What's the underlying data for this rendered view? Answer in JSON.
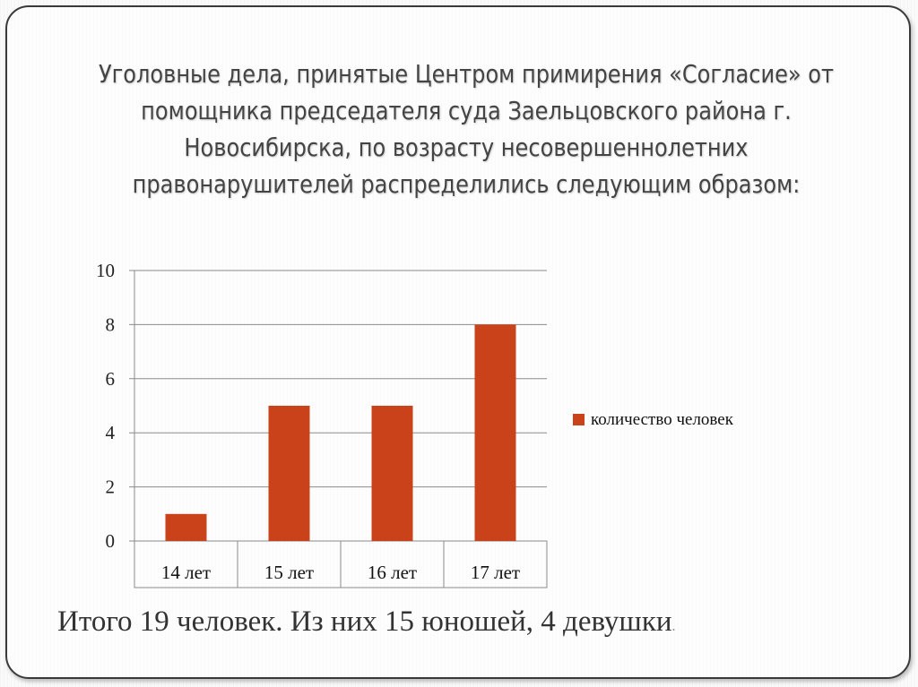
{
  "slide": {
    "title_lines": [
      "Уголовные дела, принятые Центром примирения  «Согласие» от",
      "помощника председателя суда Заельцовского района г.",
      "Новосибирска, по возрасту несовершеннолетних",
      "правонарушителей распределились следующим образом:"
    ],
    "footer_text": "Итого 19 человек. Из них 15 юношей, 4 девушки",
    "footer_dot": "."
  },
  "chart_data": {
    "type": "bar",
    "categories": [
      "14 лет",
      "15 лет",
      "16 лет",
      "17 лет"
    ],
    "series": [
      {
        "name": "количество человек",
        "values": [
          1,
          5,
          5,
          8
        ],
        "color": "#c9421a"
      }
    ],
    "ylim": [
      0,
      10
    ],
    "yticks": [
      0,
      2,
      4,
      6,
      8,
      10
    ],
    "grid": true,
    "legend_position": "right"
  }
}
